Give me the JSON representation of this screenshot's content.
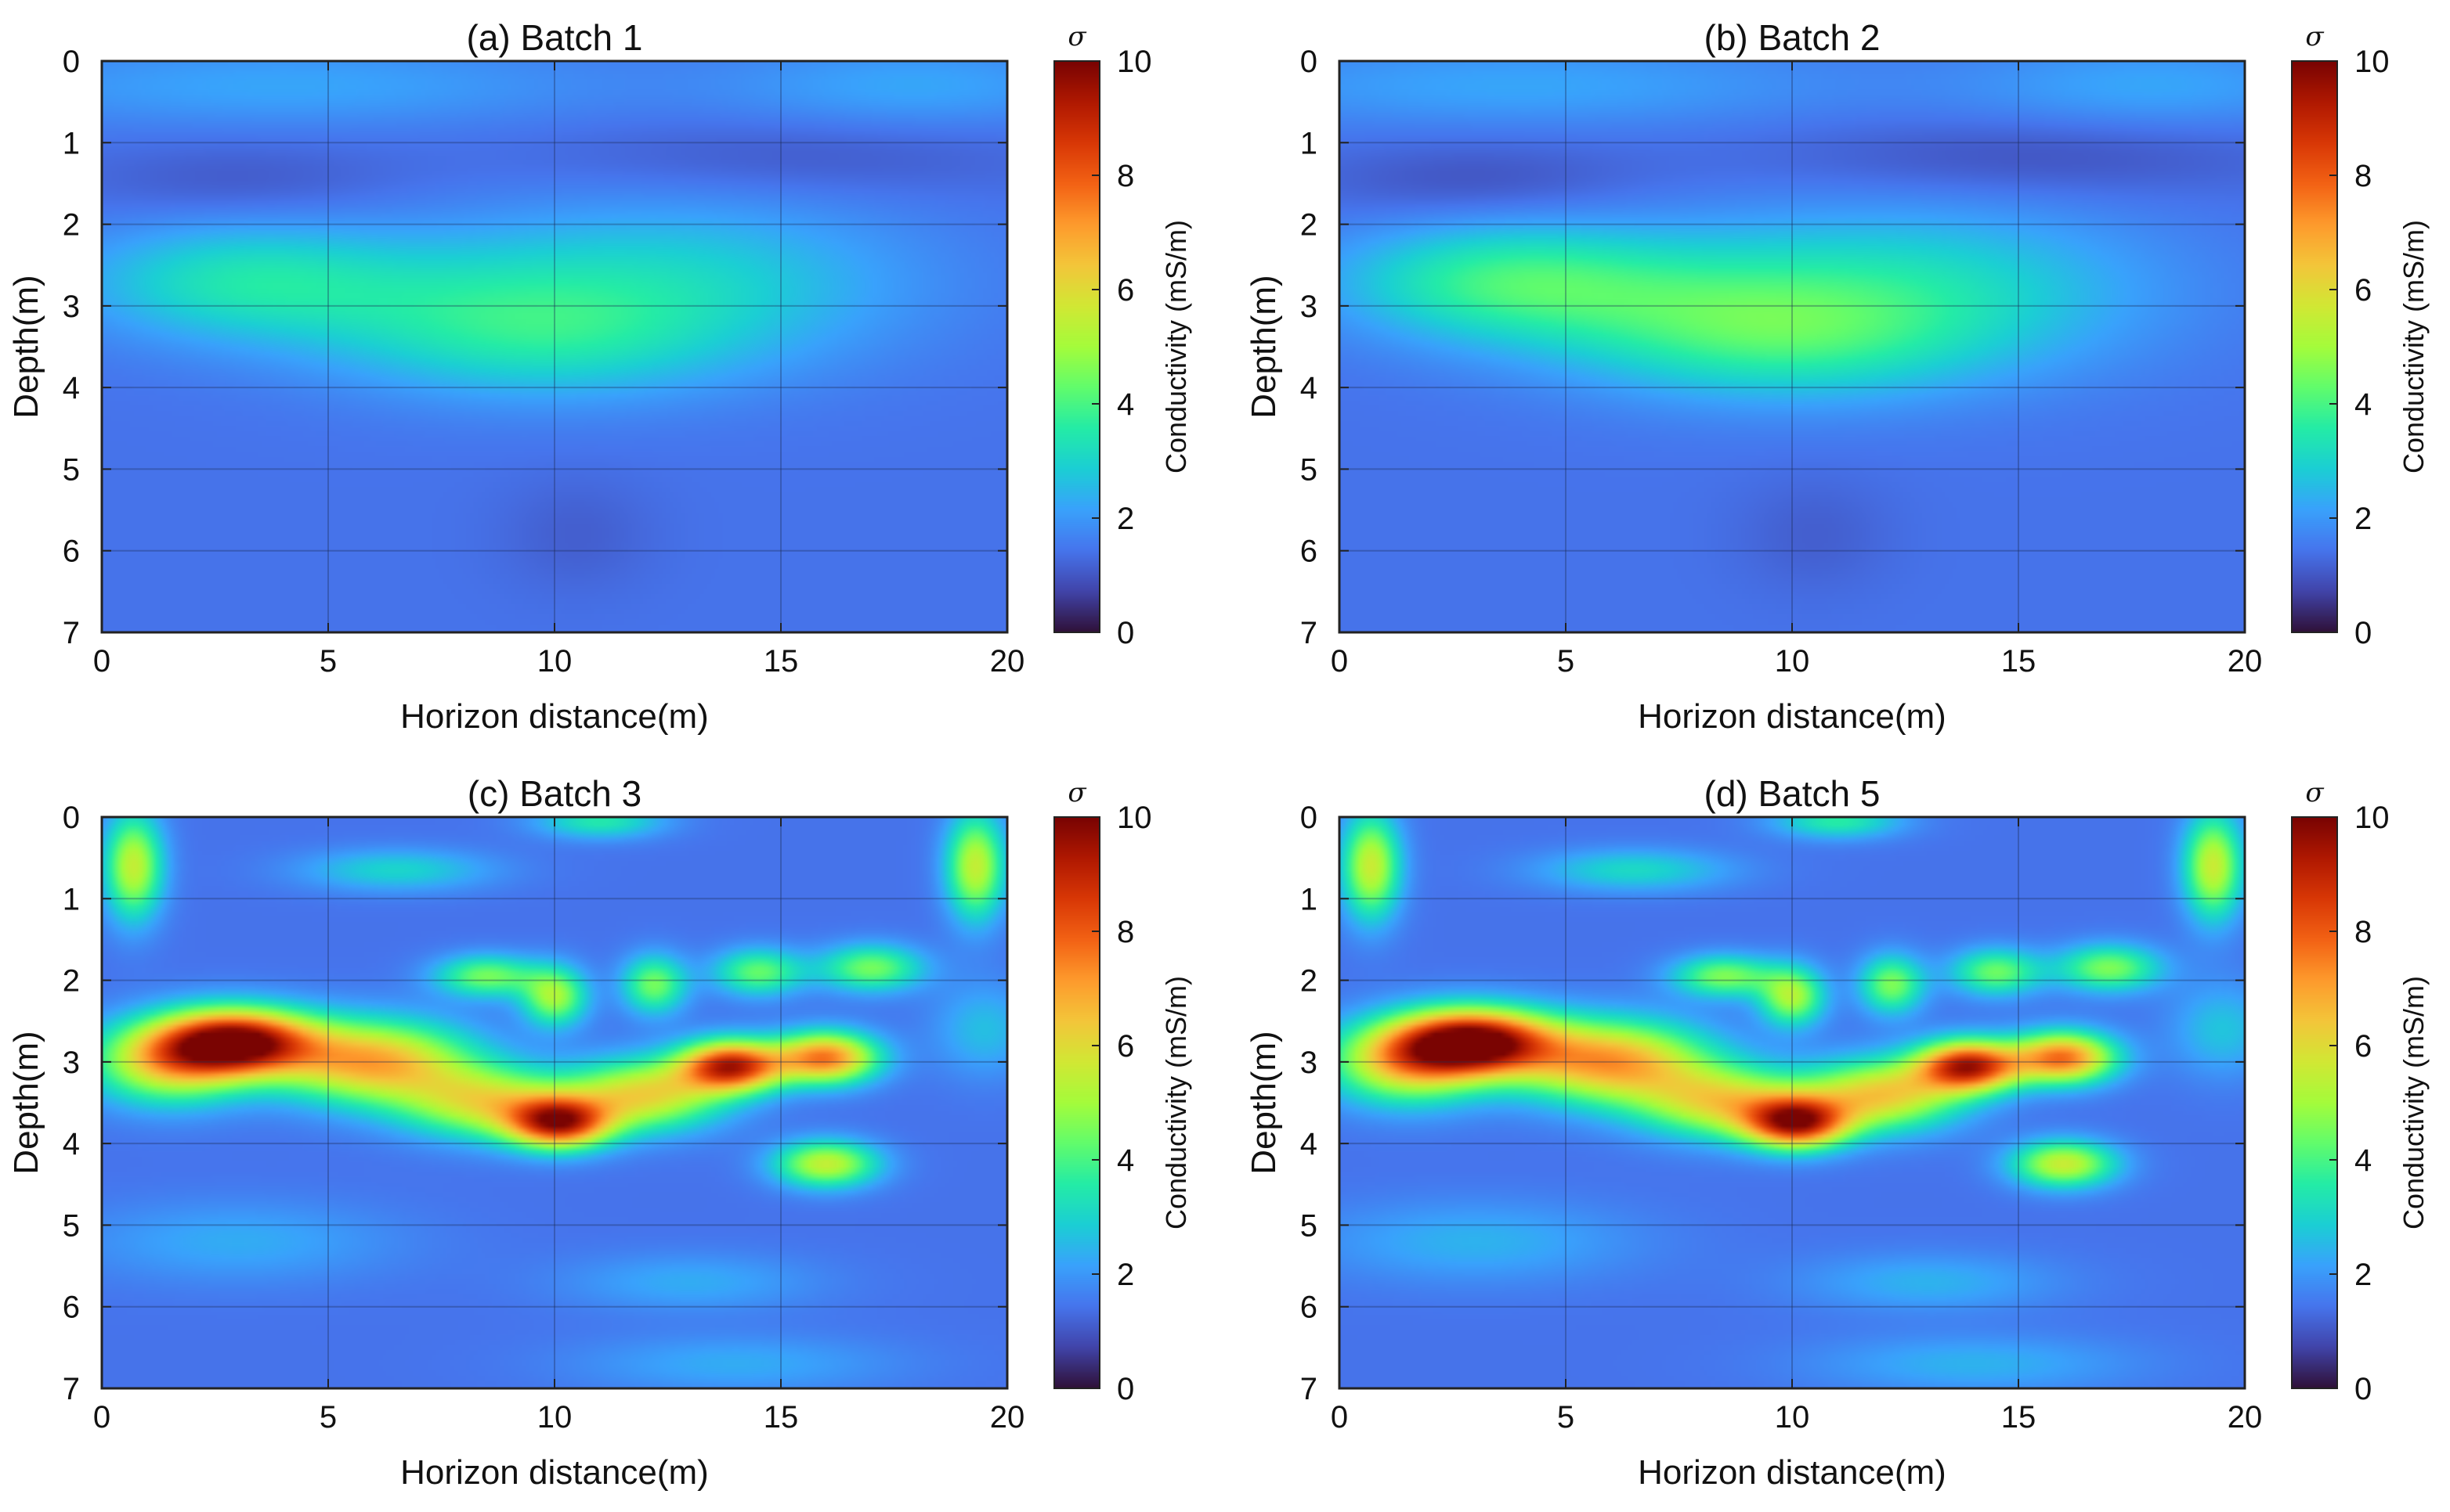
{
  "colors": {
    "background_field": "#3d5ad6",
    "frame": "#222222",
    "grid": "#1e2a55"
  },
  "colormap": [
    "#30123b",
    "#4145ab",
    "#4675ed",
    "#39a2fc",
    "#1bcfd4",
    "#24eca6",
    "#61fc6c",
    "#a4fc3b",
    "#d1e834",
    "#f3c63a",
    "#fe9b2d",
    "#f36315",
    "#d93806",
    "#b11901",
    "#7a0402"
  ],
  "chart_data": [
    {
      "type": "heatmap",
      "title": "(a) Batch 1",
      "xlabel": "Horizon distance(m)",
      "ylabel": "Depth(m)",
      "xlim": [
        0,
        20
      ],
      "ylim": [
        0,
        7
      ],
      "y_inverted": true,
      "xticks": [
        0,
        5,
        10,
        15,
        20
      ],
      "yticks": [
        0,
        1,
        2,
        3,
        4,
        5,
        6,
        7
      ],
      "grid": true,
      "colorbar": {
        "label": "Conductivity (mS/m)",
        "symbol": "σ",
        "range": [
          0,
          10
        ],
        "ticks": [
          0,
          2,
          4,
          6,
          8,
          10
        ]
      },
      "background_value": 1.4,
      "features": [
        {
          "x": 4,
          "y": 0.3,
          "value": 2.2,
          "sx": 5,
          "sy": 0.35
        },
        {
          "x": 18,
          "y": 0.3,
          "value": 2.2,
          "sx": 3,
          "sy": 0.35
        },
        {
          "x": 3,
          "y": 2.7,
          "value": 3.2,
          "sx": 2.5,
          "sy": 0.5
        },
        {
          "x": 8,
          "y": 3,
          "value": 2.6,
          "sx": 3,
          "sy": 0.6
        },
        {
          "x": 13,
          "y": 2.7,
          "value": 2.8,
          "sx": 3.5,
          "sy": 0.7
        },
        {
          "x": 10,
          "y": 3.5,
          "value": 2.4,
          "sx": 3,
          "sy": 0.5
        },
        {
          "x": 3,
          "y": 1.5,
          "value": 1.0,
          "sx": 2.5,
          "sy": 0.35
        },
        {
          "x": 15,
          "y": 1.2,
          "value": 1.0,
          "sx": 4,
          "sy": 0.35
        },
        {
          "x": 10.5,
          "y": 5.8,
          "value": 1.1,
          "sx": 1.2,
          "sy": 0.5
        }
      ]
    },
    {
      "type": "heatmap",
      "title": "(b) Batch 2",
      "xlabel": "Horizon distance(m)",
      "ylabel": "Depth(m)",
      "xlim": [
        0,
        20
      ],
      "ylim": [
        0,
        7
      ],
      "y_inverted": true,
      "xticks": [
        0,
        5,
        10,
        15,
        20
      ],
      "yticks": [
        0,
        1,
        2,
        3,
        4,
        5,
        6,
        7
      ],
      "grid": true,
      "colorbar": {
        "label": "Conductivity (mS/m)",
        "symbol": "σ",
        "range": [
          0,
          10
        ],
        "ticks": [
          0,
          2,
          4,
          6,
          8,
          10
        ]
      },
      "background_value": 1.4,
      "features": [
        {
          "x": 4,
          "y": 0.3,
          "value": 2.2,
          "sx": 5,
          "sy": 0.35
        },
        {
          "x": 18,
          "y": 0.3,
          "value": 2.2,
          "sx": 3,
          "sy": 0.35
        },
        {
          "x": 3.5,
          "y": 2.7,
          "value": 3.6,
          "sx": 2.5,
          "sy": 0.5
        },
        {
          "x": 8,
          "y": 3,
          "value": 2.9,
          "sx": 3,
          "sy": 0.6
        },
        {
          "x": 13,
          "y": 2.8,
          "value": 3.0,
          "sx": 3.5,
          "sy": 0.7
        },
        {
          "x": 10,
          "y": 3.5,
          "value": 2.6,
          "sx": 3,
          "sy": 0.5
        },
        {
          "x": 3,
          "y": 1.5,
          "value": 0.9,
          "sx": 2.5,
          "sy": 0.35
        },
        {
          "x": 15,
          "y": 1.2,
          "value": 0.9,
          "sx": 4,
          "sy": 0.35
        },
        {
          "x": 10.5,
          "y": 5.8,
          "value": 1.1,
          "sx": 1.2,
          "sy": 0.5
        }
      ]
    },
    {
      "type": "heatmap",
      "title": "(c) Batch 3",
      "xlabel": "Horizon distance(m)",
      "ylabel": "Depth(m)",
      "xlim": [
        0,
        20
      ],
      "ylim": [
        0,
        7
      ],
      "y_inverted": true,
      "xticks": [
        0,
        5,
        10,
        15,
        20
      ],
      "yticks": [
        0,
        1,
        2,
        3,
        4,
        5,
        6,
        7
      ],
      "grid": true,
      "colorbar": {
        "label": "Conductivity (mS/m)",
        "symbol": "σ",
        "range": [
          0,
          10
        ],
        "ticks": [
          0,
          2,
          4,
          6,
          8,
          10
        ]
      },
      "background_value": 1.4,
      "features": [
        {
          "x": 3,
          "y": 2.75,
          "value": 9.4,
          "sx": 1.2,
          "sy": 0.28
        },
        {
          "x": 1.5,
          "y": 3,
          "value": 6.0,
          "sx": 1.2,
          "sy": 0.35
        },
        {
          "x": 6,
          "y": 3,
          "value": 6.8,
          "sx": 1.5,
          "sy": 0.35
        },
        {
          "x": 8.5,
          "y": 3.5,
          "value": 5.5,
          "sx": 1.3,
          "sy": 0.3
        },
        {
          "x": 10.1,
          "y": 3.75,
          "value": 8.3,
          "sx": 0.8,
          "sy": 0.22
        },
        {
          "x": 12,
          "y": 3.4,
          "value": 6.0,
          "sx": 1.2,
          "sy": 0.3
        },
        {
          "x": 13.9,
          "y": 3.05,
          "value": 8.8,
          "sx": 0.8,
          "sy": 0.22
        },
        {
          "x": 16,
          "y": 2.95,
          "value": 7.5,
          "sx": 0.8,
          "sy": 0.22
        },
        {
          "x": 16,
          "y": 4.25,
          "value": 5.5,
          "sx": 0.8,
          "sy": 0.2
        },
        {
          "x": 8.5,
          "y": 1.95,
          "value": 4.5,
          "sx": 0.8,
          "sy": 0.18
        },
        {
          "x": 10,
          "y": 2.2,
          "value": 5.0,
          "sx": 0.5,
          "sy": 0.25
        },
        {
          "x": 12.2,
          "y": 2.05,
          "value": 4.5,
          "sx": 0.5,
          "sy": 0.25
        },
        {
          "x": 14.5,
          "y": 1.9,
          "value": 4.3,
          "sx": 0.7,
          "sy": 0.2
        },
        {
          "x": 17,
          "y": 1.85,
          "value": 4.5,
          "sx": 0.8,
          "sy": 0.2
        },
        {
          "x": 0.7,
          "y": 0.6,
          "value": 5.5,
          "sx": 0.45,
          "sy": 0.45
        },
        {
          "x": 19.3,
          "y": 0.6,
          "value": 5.5,
          "sx": 0.45,
          "sy": 0.45
        },
        {
          "x": 6.5,
          "y": 0.65,
          "value": 3.0,
          "sx": 1.5,
          "sy": 0.18
        },
        {
          "x": 11,
          "y": 0.05,
          "value": 3.5,
          "sx": 1.0,
          "sy": 0.15
        },
        {
          "x": 3,
          "y": 5.2,
          "value": 2.3,
          "sx": 2.5,
          "sy": 0.35
        },
        {
          "x": 13,
          "y": 5.7,
          "value": 2.3,
          "sx": 2,
          "sy": 0.25
        },
        {
          "x": 14,
          "y": 6.7,
          "value": 2.3,
          "sx": 2.5,
          "sy": 0.25
        },
        {
          "x": 19.5,
          "y": 2.6,
          "value": 2.6,
          "sx": 0.8,
          "sy": 0.4
        }
      ]
    },
    {
      "type": "heatmap",
      "title": "(d) Batch 5",
      "xlabel": "Horizon distance(m)",
      "ylabel": "Depth(m)",
      "xlim": [
        0,
        20
      ],
      "ylim": [
        0,
        7
      ],
      "y_inverted": true,
      "xticks": [
        0,
        5,
        10,
        15,
        20
      ],
      "yticks": [
        0,
        1,
        2,
        3,
        4,
        5,
        6,
        7
      ],
      "grid": true,
      "colorbar": {
        "label": "Conductivity (mS/m)",
        "symbol": "σ",
        "range": [
          0,
          10
        ],
        "ticks": [
          0,
          2,
          4,
          6,
          8,
          10
        ]
      },
      "background_value": 1.4,
      "features": [
        {
          "x": 3,
          "y": 2.75,
          "value": 9.6,
          "sx": 1.2,
          "sy": 0.28
        },
        {
          "x": 1.5,
          "y": 3,
          "value": 6.2,
          "sx": 1.2,
          "sy": 0.35
        },
        {
          "x": 6,
          "y": 3,
          "value": 7.0,
          "sx": 1.5,
          "sy": 0.35
        },
        {
          "x": 8.5,
          "y": 3.5,
          "value": 5.7,
          "sx": 1.3,
          "sy": 0.3
        },
        {
          "x": 10.1,
          "y": 3.75,
          "value": 8.4,
          "sx": 0.8,
          "sy": 0.22
        },
        {
          "x": 12,
          "y": 3.4,
          "value": 6.2,
          "sx": 1.2,
          "sy": 0.3
        },
        {
          "x": 13.9,
          "y": 3.05,
          "value": 8.9,
          "sx": 0.8,
          "sy": 0.22
        },
        {
          "x": 16,
          "y": 2.95,
          "value": 7.6,
          "sx": 0.8,
          "sy": 0.22
        },
        {
          "x": 16,
          "y": 4.25,
          "value": 5.6,
          "sx": 0.8,
          "sy": 0.2
        },
        {
          "x": 8.5,
          "y": 1.95,
          "value": 4.6,
          "sx": 0.8,
          "sy": 0.18
        },
        {
          "x": 10,
          "y": 2.2,
          "value": 5.1,
          "sx": 0.5,
          "sy": 0.25
        },
        {
          "x": 12.2,
          "y": 2.05,
          "value": 4.6,
          "sx": 0.5,
          "sy": 0.25
        },
        {
          "x": 14.5,
          "y": 1.9,
          "value": 4.4,
          "sx": 0.7,
          "sy": 0.2
        },
        {
          "x": 17,
          "y": 1.85,
          "value": 4.6,
          "sx": 0.8,
          "sy": 0.2
        },
        {
          "x": 0.7,
          "y": 0.6,
          "value": 5.6,
          "sx": 0.45,
          "sy": 0.45
        },
        {
          "x": 19.3,
          "y": 0.6,
          "value": 5.6,
          "sx": 0.45,
          "sy": 0.45
        },
        {
          "x": 6.5,
          "y": 0.65,
          "value": 3.1,
          "sx": 1.5,
          "sy": 0.18
        },
        {
          "x": 11,
          "y": 0.05,
          "value": 3.6,
          "sx": 1.0,
          "sy": 0.15
        },
        {
          "x": 3,
          "y": 5.2,
          "value": 2.4,
          "sx": 2.5,
          "sy": 0.35
        },
        {
          "x": 13,
          "y": 5.7,
          "value": 2.4,
          "sx": 2,
          "sy": 0.25
        },
        {
          "x": 14,
          "y": 6.7,
          "value": 2.4,
          "sx": 2.5,
          "sy": 0.25
        },
        {
          "x": 19.5,
          "y": 2.6,
          "value": 2.7,
          "sx": 0.8,
          "sy": 0.4
        }
      ]
    }
  ]
}
